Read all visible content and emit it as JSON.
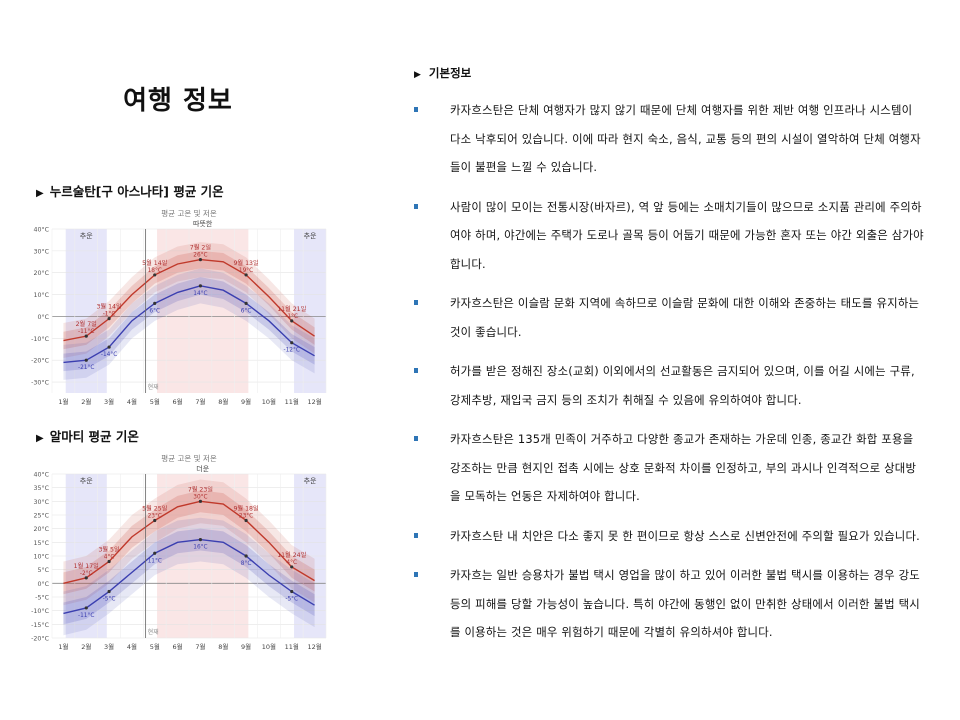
{
  "page": {
    "title": "여행 정보"
  },
  "charts": [
    {
      "heading": "누르술탄[구 아스나타] 평균 기온",
      "chart_data": {
        "type": "line",
        "title": "평균 고온 및 저온",
        "months": [
          "1월",
          "2월",
          "3월",
          "4월",
          "5월",
          "6월",
          "7월",
          "8월",
          "9월",
          "10월",
          "11월",
          "12월"
        ],
        "y_ticks": [
          "40°C",
          "30°C",
          "20°C",
          "10°C",
          "0°C",
          "-10°C",
          "-20°C",
          "-30°C"
        ],
        "ylim": [
          -35,
          40
        ],
        "season_labels": {
          "cold_left": "추운",
          "warm": "따뜻한",
          "cold_right": "추운"
        },
        "series": [
          {
            "name": "평균 고온",
            "color": "#c0392b",
            "values": [
              -11,
              -9,
              -1,
              10,
              19,
              24,
              26,
              25,
              19,
              9,
              -2,
              -9
            ]
          },
          {
            "name": "평균 저온",
            "color": "#3b3fb0",
            "values": [
              -21,
              -20,
              -14,
              -2,
              6,
              11,
              14,
              12,
              6,
              -2,
              -12,
              -18
            ]
          }
        ],
        "annotations": [
          {
            "text": "2월 7일",
            "sub": "-11°C"
          },
          {
            "text": "3월 14일",
            "sub": "-1°C"
          },
          {
            "text": "5월 14일",
            "sub": "18°C"
          },
          {
            "text": "7월 2일",
            "sub": "26°C"
          },
          {
            "text": "9월 13일",
            "sub": "19°C"
          },
          {
            "text": "11월 21일",
            "sub": "-1°C"
          },
          {
            "text": "",
            "sub": "-21°C"
          },
          {
            "text": "",
            "sub": "-14°C"
          },
          {
            "text": "",
            "sub": "6°C"
          },
          {
            "text": "",
            "sub": "14°C"
          },
          {
            "text": "",
            "sub": "6°C"
          },
          {
            "text": "",
            "sub": "-12°C"
          }
        ],
        "now_label": "현재"
      }
    },
    {
      "heading": "알마티 평균 기온",
      "chart_data": {
        "type": "line",
        "title": "평균 고온 및 저온",
        "months": [
          "1월",
          "2월",
          "3월",
          "4월",
          "5월",
          "6월",
          "7월",
          "8월",
          "9월",
          "10월",
          "11월",
          "12월"
        ],
        "y_ticks": [
          "40°C",
          "35°C",
          "30°C",
          "25°C",
          "20°C",
          "15°C",
          "10°C",
          "5°C",
          "0°C",
          "-5°C",
          "-10°C",
          "-15°C",
          "-20°C"
        ],
        "ylim": [
          -20,
          40
        ],
        "season_labels": {
          "cold_left": "추운",
          "warm": "더운",
          "cold_right": "추운"
        },
        "series": [
          {
            "name": "평균 고온",
            "color": "#c0392b",
            "values": [
              0,
              2,
              8,
              17,
              23,
              28,
              30,
              29,
              23,
              15,
              6,
              1
            ]
          },
          {
            "name": "평균 저온",
            "color": "#3b3fb0",
            "values": [
              -11,
              -9,
              -3,
              4,
              11,
              15,
              16,
              15,
              10,
              3,
              -3,
              -8
            ]
          }
        ],
        "annotations": [
          {
            "text": "1월 17일",
            "sub": "-2°C"
          },
          {
            "text": "3월 5일",
            "sub": "4°C"
          },
          {
            "text": "5월 25일",
            "sub": "23°C"
          },
          {
            "text": "7월 23일",
            "sub": "30°C"
          },
          {
            "text": "9월 18일",
            "sub": "23°C"
          },
          {
            "text": "11월 24일",
            "sub": "4°C"
          },
          {
            "text": "",
            "sub": "-11°C"
          },
          {
            "text": "",
            "sub": "-5°C"
          },
          {
            "text": "",
            "sub": "11°C"
          },
          {
            "text": "",
            "sub": "16°C"
          },
          {
            "text": "",
            "sub": "8°C"
          },
          {
            "text": "",
            "sub": "-5°C"
          }
        ],
        "now_label": "현재"
      }
    }
  ],
  "info": {
    "heading": "기본정보",
    "bullets": [
      "카자흐스탄은 단체 여행자가 많지 않기 때문에 단체 여행자를 위한 제반 여행 인프라나 시스템이 다소 낙후되어 있습니다. 이에 따라 현지 숙소, 음식, 교통 등의 편의 시설이 열악하여 단체 여행자들이 불편을 느낄 수 있습니다.",
      "사람이 많이 모이는 전통시장(바자르), 역 앞 등에는 소매치기들이 많으므로 소지품 관리에 주의하여야 하며, 야간에는 주택가 도로나 골목 등이 어둡기 때문에 가능한 혼자 또는 야간 외출은 삼가야 합니다.",
      "카자흐스탄은 이슬람 문화 지역에 속하므로 이슬람 문화에 대한 이해와 존중하는 태도를 유지하는 것이 좋습니다.",
      "허가를 받은 정해진 장소(교회) 이외에서의 선교활동은 금지되어 있으며, 이를 어길 시에는 구류, 강제추방, 재입국 금지 등의 조치가 취해질 수 있음에 유의하여야 합니다.",
      "카자흐스탄은 135개 민족이 거주하고 다양한 종교가 존재하는 가운데 인종, 종교간 화합 포용을 강조하는 만큼 현지인 접촉 시에는 상호 문화적 차이를 인정하고, 부의 과시나 인격적으로 상대방을 모독하는 언동은 자제하여야 합니다.",
      "카자흐스탄 내 치안은 다소 좋지 못 한 편이므로 항상 스스로 신변안전에 주의할 필요가 있습니다.",
      "카자흐는 일반 승용차가 불법 택시 영업을 많이 하고 있어 이러한 불법 택시를 이용하는 경우 강도 등의 피해를 당할 가능성이 높습니다. 특히 야간에 동행인 없이 만취한 상태에서 이러한 불법 택시를 이용하는 것은 매우 위험하기 때문에 각별히 유의하셔야 합니다."
    ]
  }
}
